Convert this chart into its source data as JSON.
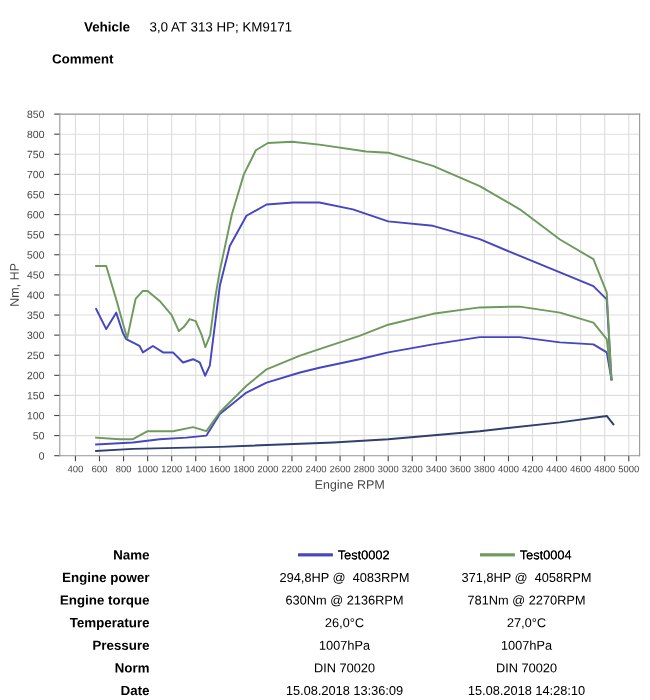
{
  "chart_data": {
    "type": "line",
    "xlabel": "Engine RPM",
    "ylabel": "Nm, HP",
    "x": [
      572,
      656,
      739,
      794,
      830,
      900,
      960,
      1000,
      1100,
      1200,
      1260,
      1300,
      1350,
      1400,
      1450,
      1480,
      1520,
      1560,
      1600,
      1700,
      1800,
      1900,
      2000,
      2200,
      2428,
      2817,
      3000,
      3372,
      3761,
      4094,
      4428,
      4706,
      4817,
      4856
    ],
    "series": [
      {
        "name": "Test0002",
        "color": "#4646c0",
        "x": [
          572,
          656,
          739,
          794,
          822,
          933,
          961,
          1044,
          1128,
          1211,
          1294,
          1378,
          1433,
          1478,
          1517,
          1600,
          1683,
          1822,
          1989,
          2211,
          2428,
          2706,
          3000,
          3372,
          3761,
          4094,
          4428,
          4706,
          4817,
          4856
        ],
        "values": [
          365,
          315,
          356,
          306,
          290,
          273,
          257,
          273,
          257,
          257,
          232,
          240,
          232,
          199,
          224,
          422,
          522,
          597,
          625,
          630,
          630,
          613,
          583,
          572,
          539,
          497,
          456,
          422,
          389,
          190
        ]
      },
      {
        "name": "Test0004",
        "color": "#6e9a5e",
        "values": [
          472,
          472,
          389,
          330,
          292,
          390,
          410,
          410,
          385,
          350,
          310,
          320,
          340,
          335,
          300,
          270,
          300,
          390,
          460,
          600,
          700,
          760,
          778,
          781,
          774,
          757,
          754,
          721,
          671,
          613,
          538,
          489,
          406,
          190
        ]
      },
      {
        "color": "#4646c0",
        "x": [
          572,
          878,
          1100,
          1322,
          1489,
          1600,
          1822,
          1989,
          2267,
          2428,
          2761,
          3000,
          3372,
          3761,
          4094,
          4428,
          4706,
          4817,
          4856
        ],
        "values": [
          28,
          33,
          41,
          45,
          50,
          104,
          157,
          182,
          207,
          219,
          240,
          257,
          277,
          295,
          295,
          282,
          277,
          257,
          190
        ]
      },
      {
        "color": "#6e9a5e",
        "x": [
          572,
          767,
          878,
          1000,
          1211,
          1378,
          1489,
          1600,
          1822,
          1989,
          2267,
          2428,
          2761,
          3000,
          3372,
          3761,
          4094,
          4428,
          4706,
          4817,
          4856
        ],
        "values": [
          45,
          41,
          41,
          61,
          61,
          71,
          61,
          108,
          174,
          215,
          249,
          265,
          298,
          326,
          353,
          369,
          371,
          356,
          331,
          290,
          190
        ]
      },
      {
        "color": "#2f3f6f",
        "x": [
          572,
          878,
          1600,
          2544,
          3000,
          3761,
          4428,
          4817,
          4872
        ],
        "values": [
          12,
          17,
          22,
          33,
          41,
          61,
          83,
          99,
          78
        ]
      }
    ],
    "xlim": [
      270,
      5090
    ],
    "xticks": [
      400,
      600,
      800,
      1000,
      1200,
      1400,
      1600,
      1800,
      2000,
      2200,
      2400,
      2600,
      2800,
      3000,
      3200,
      3400,
      3600,
      3800,
      4000,
      4200,
      4400,
      4600,
      4800,
      5000
    ],
    "ylim": [
      0,
      850
    ],
    "yticks": [
      0,
      50,
      100,
      150,
      200,
      250,
      300,
      350,
      400,
      450,
      500,
      550,
      600,
      650,
      700,
      750,
      800,
      850
    ],
    "grid": true,
    "legend": "bottom",
    "marker": "none",
    "line_style": "solid",
    "annotations": [
      "Vehicle",
      "3,0 AT 313 HP; KM9171",
      "Comment",
      "Name",
      "Engine power",
      "294,8HP @  4083RPM",
      "371,8HP @  4058RPM",
      "Engine torque",
      "630Nm @ 2136RPM",
      "781Nm @ 2270RPM",
      "Temperature",
      "26,0°C",
      "27,0°C",
      "Pressure",
      "1007hPa",
      "1007hPa",
      "Norm",
      "DIN 70020",
      "DIN 70020",
      "Date",
      "15.08.2018 13:36:09",
      "15.08.2018 14:28:10"
    ]
  }
}
